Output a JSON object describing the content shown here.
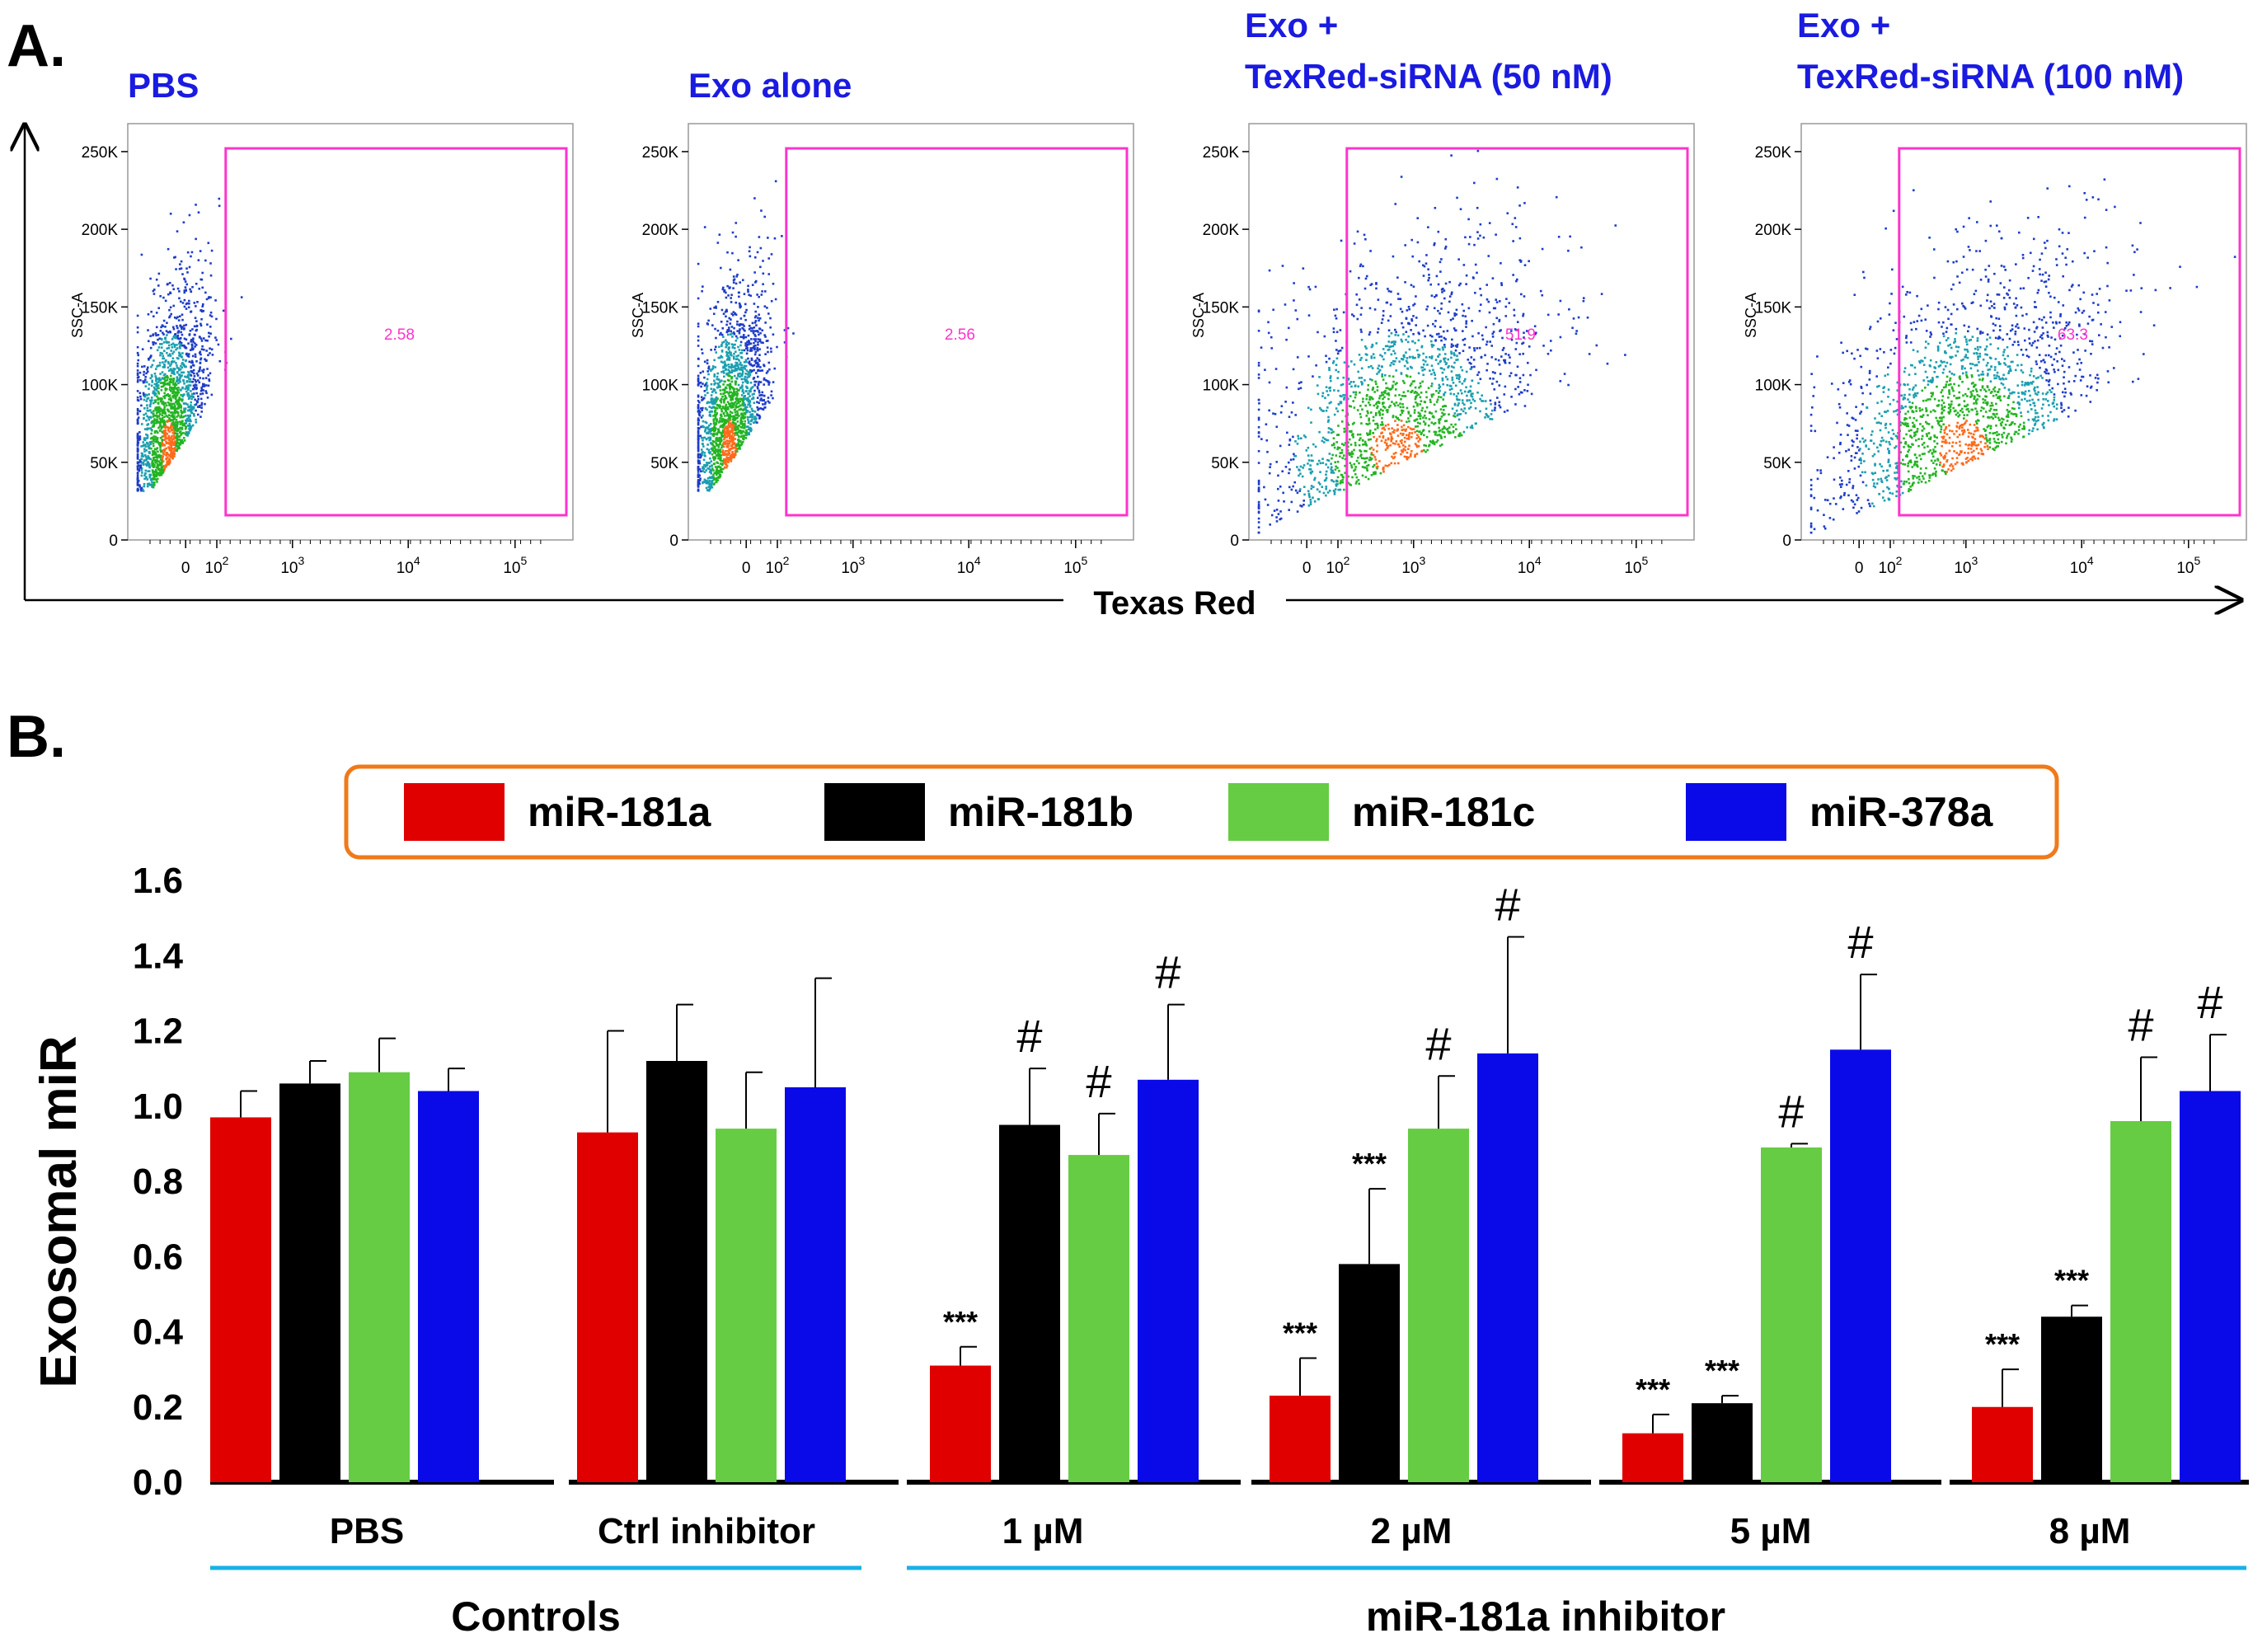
{
  "panel_a": {
    "label": "A.",
    "x_axis_title": "Texas Red",
    "y_axis_label": "SSC-A",
    "y_ticks": [
      "250K",
      "200K",
      "150K",
      "100K",
      "50K",
      "0"
    ],
    "x_ticks": [
      {
        "base": "0",
        "exp": ""
      },
      {
        "base": "10",
        "exp": "2"
      },
      {
        "base": "10",
        "exp": "3"
      },
      {
        "base": "10",
        "exp": "4"
      },
      {
        "base": "10",
        "exp": "5"
      }
    ],
    "plots": [
      {
        "title_lines": [
          "PBS"
        ],
        "gate_value": "2.58",
        "spread": 0.15,
        "center": 0.09
      },
      {
        "title_lines": [
          "Exo alone"
        ],
        "gate_value": "2.56",
        "spread": 0.15,
        "center": 0.09
      },
      {
        "title_lines": [
          "Exo +",
          "TexRed-siRNA (50 nM)"
        ],
        "gate_value": "51.9",
        "spread": 0.55,
        "center": 0.33
      },
      {
        "title_lines": [
          "Exo +",
          "TexRed-siRNA (100 nM)"
        ],
        "gate_value": "63.3",
        "spread": 0.55,
        "center": 0.36
      }
    ],
    "colors": {
      "dots": "#1e3cc8",
      "dense": "#22b422",
      "core": "#ff6a1a",
      "gate": "#ff33cc",
      "title": "#1a1ae0"
    }
  },
  "chart_data": {
    "type": "bar",
    "panel_label": "B.",
    "ylabel": "Exosomal miR",
    "ylim": [
      0,
      1.6
    ],
    "yticks": [
      "0.0",
      "0.2",
      "0.4",
      "0.6",
      "0.8",
      "1.0",
      "1.2",
      "1.4",
      "1.6"
    ],
    "categories": [
      "PBS",
      "Ctrl inhibitor",
      "1 µM",
      "2 µM",
      "5 µM",
      "8 µM"
    ],
    "supergroups": [
      {
        "label": "Controls",
        "categories": [
          0,
          1
        ]
      },
      {
        "label": "miR-181a inhibitor",
        "categories": [
          2,
          3,
          4,
          5
        ]
      }
    ],
    "series": [
      {
        "name": "miR-181a",
        "color": "#e00000",
        "values": [
          0.97,
          0.93,
          0.31,
          0.23,
          0.13,
          0.2
        ],
        "errors": [
          0.07,
          0.27,
          0.05,
          0.1,
          0.05,
          0.1
        ],
        "annotations": [
          "",
          "",
          "***",
          "***",
          "***",
          "***"
        ]
      },
      {
        "name": "miR-181b",
        "color": "#000000",
        "values": [
          1.06,
          1.12,
          0.95,
          0.58,
          0.21,
          0.44
        ],
        "errors": [
          0.06,
          0.15,
          0.15,
          0.2,
          0.02,
          0.03
        ],
        "annotations": [
          "",
          "",
          "#",
          "***",
          "***",
          "***"
        ]
      },
      {
        "name": "miR-181c",
        "color": "#66cc44",
        "values": [
          1.09,
          0.94,
          0.87,
          0.94,
          0.89,
          0.96
        ],
        "errors": [
          0.09,
          0.15,
          0.11,
          0.14,
          0.01,
          0.17
        ],
        "annotations": [
          "",
          "",
          "#",
          "#",
          "#",
          "#"
        ]
      },
      {
        "name": "miR-378a",
        "color": "#0a0ae8",
        "values": [
          1.04,
          1.05,
          1.07,
          1.14,
          1.15,
          1.04
        ],
        "errors": [
          0.06,
          0.29,
          0.2,
          0.31,
          0.2,
          0.15
        ],
        "annotations": [
          "",
          "",
          "#",
          "#",
          "#",
          "#"
        ]
      }
    ],
    "legend_position": "top",
    "legend_border_color": "#f07a1a",
    "group_underline_color": "#1ab0e8"
  }
}
